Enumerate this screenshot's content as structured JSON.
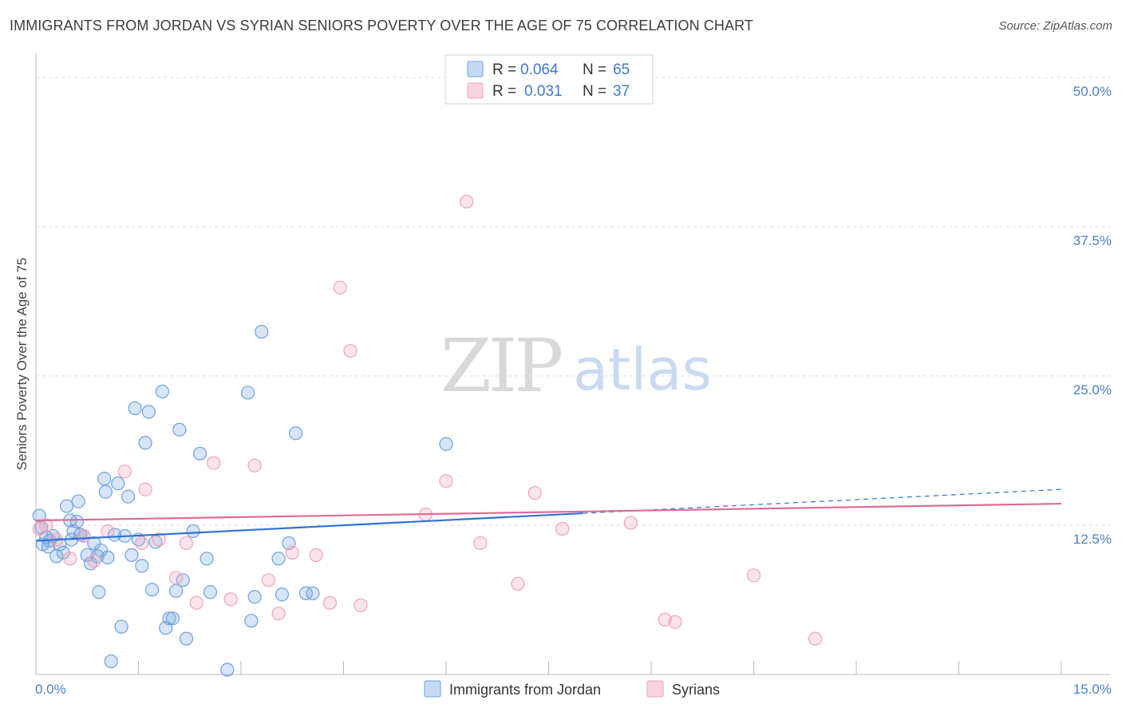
{
  "header": {
    "title": "IMMIGRANTS FROM JORDAN VS SYRIAN SENIORS POVERTY OVER THE AGE OF 75 CORRELATION CHART",
    "source": "Source: ZipAtlas.com"
  },
  "watermark": {
    "zip": "ZIP",
    "atlas": "atlas"
  },
  "colors": {
    "jordan": "#6fa1e0",
    "jordan_line": "#2f72d4",
    "syria": "#f0a3bc",
    "syria_line": "#e06b96",
    "axis_tick": "#4a7ec7",
    "grid": "#dddddd"
  },
  "legend": {
    "rows": [
      {
        "r_label": "R = ",
        "r_value": "0.064",
        "n_label": "N = ",
        "n_value": "65"
      },
      {
        "r_label": "R = ",
        "r_value": "0.031",
        "n_label": "N = ",
        "n_value": "37"
      }
    ]
  },
  "chart_data": {
    "type": "scatter",
    "title": "IMMIGRANTS FROM JORDAN VS SYRIAN SENIORS POVERTY OVER THE AGE OF 75 CORRELATION CHART",
    "xlabel": "",
    "ylabel": "Seniors Poverty Over the Age of 75",
    "xlim": [
      0,
      15
    ],
    "ylim": [
      0,
      50
    ],
    "x_ticks": [
      "0.0%",
      "15.0%"
    ],
    "y_ticks": [
      {
        "value": 12.5,
        "label": "12.5%"
      },
      {
        "value": 25,
        "label": "25.0%"
      },
      {
        "value": 37.5,
        "label": "37.5%"
      },
      {
        "value": 50,
        "label": "50.0%"
      }
    ],
    "grid": true,
    "legend_position": "top-center",
    "series": [
      {
        "name": "Immigrants from Jordan",
        "r": 0.064,
        "n": 65,
        "trend": {
          "x0": 0,
          "y0": 11.2,
          "x1": 8.0,
          "y1": 13.5,
          "dash_x1": 15,
          "dash_y1": 15.5
        },
        "points": [
          [
            0.05,
            13.3
          ],
          [
            0.1,
            10.9
          ],
          [
            0.15,
            11.5
          ],
          [
            0.2,
            11.2
          ],
          [
            0.25,
            11.6
          ],
          [
            0.3,
            9.9
          ],
          [
            0.35,
            10.9
          ],
          [
            0.4,
            10.2
          ],
          [
            0.45,
            14.1
          ],
          [
            0.5,
            12.9
          ],
          [
            0.55,
            12.0
          ],
          [
            0.6,
            12.8
          ],
          [
            0.62,
            14.5
          ],
          [
            0.65,
            11.7
          ],
          [
            0.7,
            11.6
          ],
          [
            0.75,
            10.0
          ],
          [
            0.8,
            9.3
          ],
          [
            0.85,
            11.0
          ],
          [
            0.9,
            9.9
          ],
          [
            0.92,
            6.9
          ],
          [
            0.95,
            10.4
          ],
          [
            1.0,
            16.4
          ],
          [
            1.02,
            15.3
          ],
          [
            1.05,
            9.8
          ],
          [
            1.1,
            1.1
          ],
          [
            1.15,
            11.7
          ],
          [
            1.2,
            16.0
          ],
          [
            1.25,
            4.0
          ],
          [
            1.3,
            11.6
          ],
          [
            1.35,
            14.9
          ],
          [
            1.4,
            10.0
          ],
          [
            1.45,
            22.3
          ],
          [
            1.5,
            11.3
          ],
          [
            1.55,
            9.1
          ],
          [
            1.6,
            19.4
          ],
          [
            1.65,
            22.0
          ],
          [
            1.7,
            7.1
          ],
          [
            1.75,
            11.1
          ],
          [
            1.85,
            23.7
          ],
          [
            1.9,
            3.9
          ],
          [
            1.95,
            4.7
          ],
          [
            2.0,
            4.7
          ],
          [
            2.05,
            7.0
          ],
          [
            2.1,
            20.5
          ],
          [
            2.15,
            7.9
          ],
          [
            2.2,
            3.0
          ],
          [
            2.3,
            12.0
          ],
          [
            2.4,
            18.5
          ],
          [
            2.5,
            9.7
          ],
          [
            2.55,
            6.9
          ],
          [
            2.8,
            0.4
          ],
          [
            3.1,
            23.6
          ],
          [
            3.15,
            4.5
          ],
          [
            3.2,
            6.5
          ],
          [
            3.3,
            28.7
          ],
          [
            3.55,
            9.7
          ],
          [
            3.6,
            6.7
          ],
          [
            3.7,
            11.0
          ],
          [
            3.8,
            20.2
          ],
          [
            3.95,
            6.8
          ],
          [
            4.05,
            6.8
          ],
          [
            6.0,
            19.3
          ],
          [
            0.08,
            12.3
          ],
          [
            0.18,
            10.7
          ],
          [
            0.52,
            11.3
          ]
        ]
      },
      {
        "name": "Syrians",
        "r": 0.031,
        "n": 37,
        "trend": {
          "x0": 0,
          "y0": 12.9,
          "x1": 15,
          "y1": 14.3
        },
        "points": [
          [
            0.05,
            12.2
          ],
          [
            0.15,
            12.5
          ],
          [
            0.3,
            11.3
          ],
          [
            0.5,
            9.7
          ],
          [
            0.7,
            11.6
          ],
          [
            0.85,
            9.5
          ],
          [
            1.05,
            12.0
          ],
          [
            1.3,
            17.0
          ],
          [
            1.55,
            11.0
          ],
          [
            1.6,
            15.5
          ],
          [
            1.8,
            11.3
          ],
          [
            2.05,
            8.1
          ],
          [
            2.2,
            11.0
          ],
          [
            2.35,
            6.0
          ],
          [
            2.6,
            17.7
          ],
          [
            2.85,
            6.3
          ],
          [
            3.2,
            17.5
          ],
          [
            3.4,
            7.9
          ],
          [
            3.55,
            5.1
          ],
          [
            3.75,
            10.2
          ],
          [
            4.1,
            10.0
          ],
          [
            4.3,
            6.0
          ],
          [
            4.45,
            32.4
          ],
          [
            4.6,
            27.1
          ],
          [
            4.75,
            5.8
          ],
          [
            5.7,
            13.4
          ],
          [
            6.0,
            16.2
          ],
          [
            6.3,
            39.6
          ],
          [
            6.5,
            11.0
          ],
          [
            7.05,
            7.6
          ],
          [
            7.3,
            15.2
          ],
          [
            7.7,
            12.2
          ],
          [
            8.7,
            12.7
          ],
          [
            9.2,
            4.6
          ],
          [
            9.35,
            4.4
          ],
          [
            10.5,
            8.3
          ],
          [
            11.4,
            3.0
          ]
        ]
      }
    ]
  },
  "bottom_legend": {
    "items": [
      {
        "label": "Immigrants from Jordan"
      },
      {
        "label": "Syrians"
      }
    ]
  }
}
